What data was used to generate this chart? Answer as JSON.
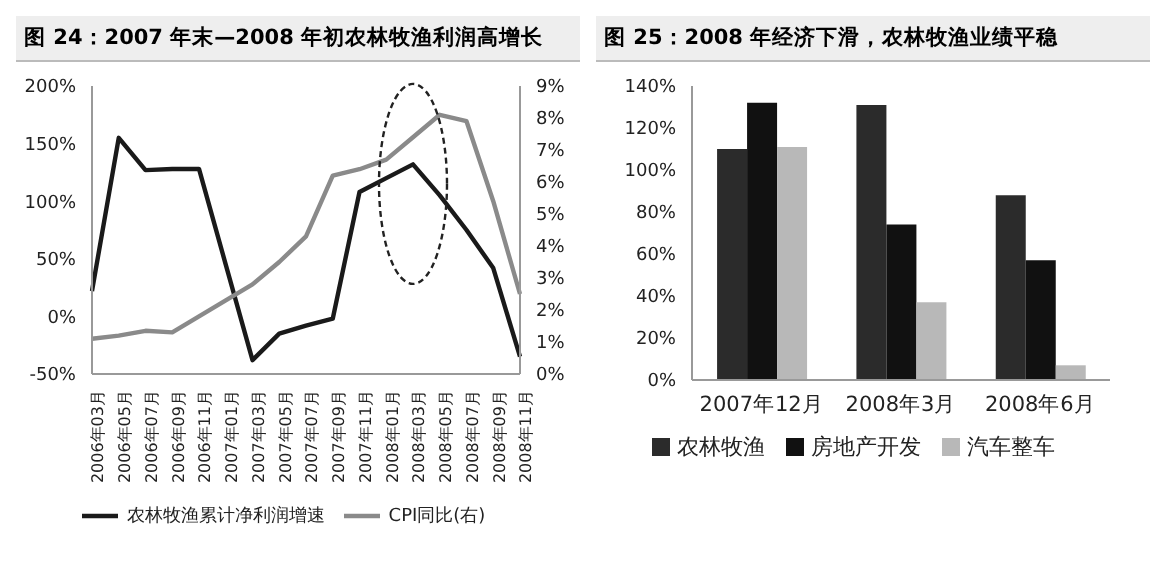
{
  "chart_data": [
    {
      "type": "line",
      "title": "图 24：2007 年末—2008 年初农林牧渔利润高增长",
      "categories": [
        "2006年03月",
        "2006年05月",
        "2006年07月",
        "2006年09月",
        "2006年11月",
        "2007年01月",
        "2007年03月",
        "2007年05月",
        "2007年07月",
        "2007年09月",
        "2007年11月",
        "2008年01月",
        "2008年03月",
        "2008年05月",
        "2008年07月",
        "2008年09月",
        "2008年11月"
      ],
      "series": [
        {
          "name": "农林牧渔累计净利润增速",
          "color": "#1a1a1a",
          "values": [
            22,
            155,
            127,
            128,
            128,
            45,
            -38,
            -15,
            -8,
            -2,
            108,
            120,
            132,
            105,
            75,
            42,
            -35
          ]
        },
        {
          "name": "CPI同比(右)",
          "color": "#8a8a8a",
          "axis": "y2",
          "values": [
            1.1,
            1.2,
            1.35,
            1.3,
            1.8,
            2.3,
            2.8,
            3.5,
            4.3,
            6.2,
            6.4,
            6.7,
            7.4,
            8.1,
            7.9,
            5.4,
            2.5
          ]
        }
      ],
      "ylim": [
        -50,
        200
      ],
      "yticks": [
        {
          "value": -50,
          "label": "-50%"
        },
        {
          "value": 0,
          "label": "0%"
        },
        {
          "value": 50,
          "label": "50%"
        },
        {
          "value": 100,
          "label": "100%"
        },
        {
          "value": 150,
          "label": "150%"
        },
        {
          "value": 200,
          "label": "200%"
        }
      ],
      "y2lim": [
        0,
        9
      ],
      "y2ticks": [
        {
          "value": 0,
          "label": "0%"
        },
        {
          "value": 1,
          "label": "1%"
        },
        {
          "value": 2,
          "label": "2%"
        },
        {
          "value": 3,
          "label": "3%"
        },
        {
          "value": 4,
          "label": "4%"
        },
        {
          "value": 5,
          "label": "5%"
        },
        {
          "value": 6,
          "label": "6%"
        },
        {
          "value": 7,
          "label": "7%"
        },
        {
          "value": 8,
          "label": "8%"
        },
        {
          "value": 9,
          "label": "9%"
        }
      ],
      "marker": "none",
      "legend": "bottom"
    },
    {
      "type": "bar",
      "title": "图 25：2008 年经济下滑，农林牧渔业绩平稳",
      "categories": [
        "2007年12月",
        "2008年3月",
        "2008年6月"
      ],
      "series": [
        {
          "name": "农林牧渔",
          "color": "#2b2b2b",
          "values": [
            110,
            131,
            88
          ]
        },
        {
          "name": "房地产开发",
          "color": "#111111",
          "values": [
            132,
            74,
            57
          ]
        },
        {
          "name": "汽车整车",
          "color": "#b8b8b8",
          "values": [
            111,
            37,
            7
          ]
        }
      ],
      "ylim": [
        0,
        140
      ],
      "yticks": [
        {
          "value": 0,
          "label": "0%"
        },
        {
          "value": 20,
          "label": "20%"
        },
        {
          "value": 40,
          "label": "40%"
        },
        {
          "value": 60,
          "label": "60%"
        },
        {
          "value": 80,
          "label": "80%"
        },
        {
          "value": 100,
          "label": "100%"
        },
        {
          "value": 120,
          "label": "120%"
        },
        {
          "value": 140,
          "label": "140%"
        }
      ],
      "legend": "bottom"
    }
  ]
}
